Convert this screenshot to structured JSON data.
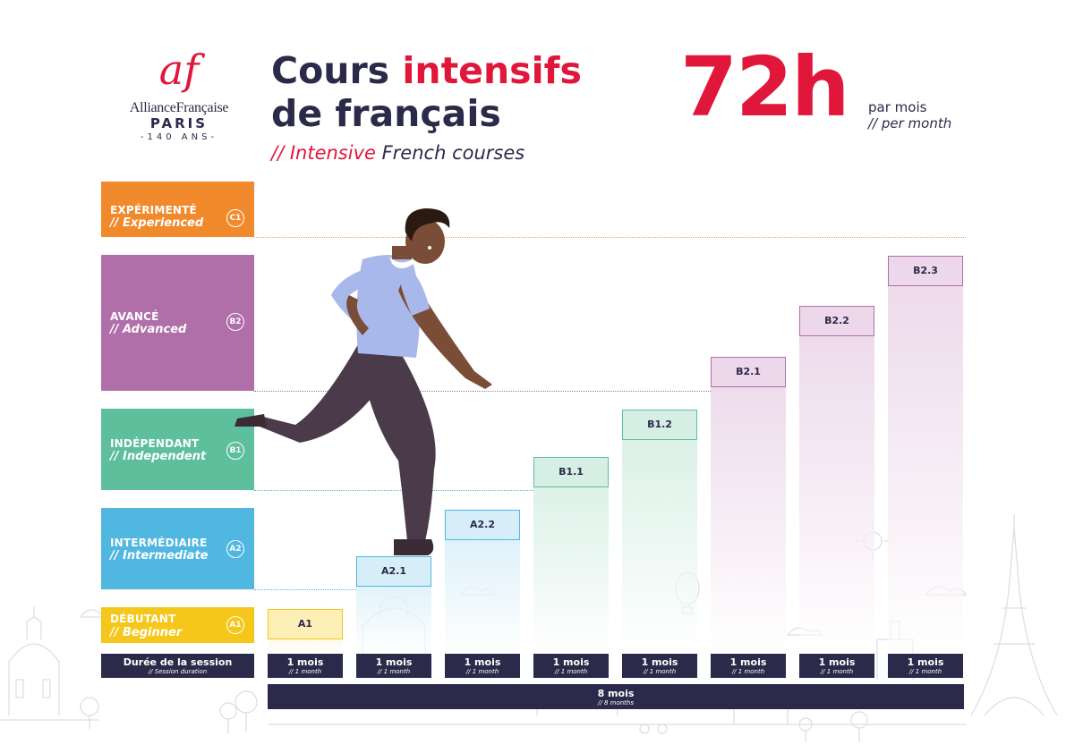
{
  "logo": {
    "mark": "af",
    "name": "AllianceFrançaise",
    "city": "PARIS",
    "years": "-140 ANS-"
  },
  "title": {
    "line1_a": "Cours ",
    "line1_b": "intensifs",
    "line2": "de français",
    "sub_slash": "// ",
    "sub_red": "Intensive",
    "sub_rest": " French courses"
  },
  "hours": {
    "value": "72h",
    "fr": "par mois",
    "en": "// per month"
  },
  "levels": [
    {
      "fr": "EXPÉRIMENTÉ",
      "en": "// Experienced",
      "badge": "C1",
      "color": "#f08a2c"
    },
    {
      "fr": "AVANCÉ",
      "en": "// Advanced",
      "badge": "B2",
      "color": "#b06fa9"
    },
    {
      "fr": "INDÉPENDANT",
      "en": "// Independent",
      "badge": "B1",
      "color": "#5dbf9c"
    },
    {
      "fr": "INTERMÉDIAIRE",
      "en": "// Intermediate",
      "badge": "A2",
      "color": "#4fb7e0"
    },
    {
      "fr": "DÉBUTANT",
      "en": "// Beginner",
      "badge": "A1",
      "color": "#f5c71a"
    }
  ],
  "courses": [
    {
      "label": "A1",
      "color": "#f5c71a",
      "fill": "#fdf0b6"
    },
    {
      "label": "A2.1",
      "color": "#4fb7e0",
      "fill": "#d6eef8"
    },
    {
      "label": "A2.2",
      "color": "#4fb7e0",
      "fill": "#d6eef8"
    },
    {
      "label": "B1.1",
      "color": "#5dbf9c",
      "fill": "#d6efe4"
    },
    {
      "label": "B1.2",
      "color": "#5dbf9c",
      "fill": "#d6efe4"
    },
    {
      "label": "B2.1",
      "color": "#b06fa9",
      "fill": "#ecd8ea"
    },
    {
      "label": "B2.2",
      "color": "#b06fa9",
      "fill": "#ecd8ea"
    },
    {
      "label": "B2.3",
      "color": "#b06fa9",
      "fill": "#ecd8ea"
    }
  ],
  "session": {
    "fr": "Durée de la session",
    "en": "// Session duration"
  },
  "duration": {
    "fr": "1 mois",
    "en": "// 1 month"
  },
  "total": {
    "fr": "8 mois",
    "en": "// 8 months"
  },
  "colors": {
    "navy": "#2b2a4a",
    "red": "#e0173a"
  },
  "illustration": "person-climbing-steps"
}
